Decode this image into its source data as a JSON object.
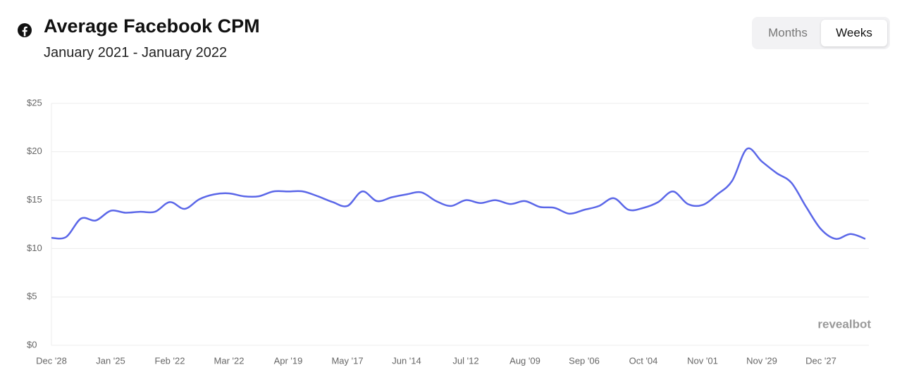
{
  "chart_data": {
    "type": "line",
    "title": "Average Facebook CPM",
    "subtitle": "January 2021 - January 2022",
    "categories": [
      "Dec '28",
      null,
      null,
      null,
      "Jan '25",
      null,
      null,
      null,
      "Feb '22",
      null,
      null,
      null,
      "Mar '22",
      null,
      null,
      null,
      "Apr '19",
      null,
      null,
      null,
      "May '17",
      null,
      null,
      null,
      "Jun '14",
      null,
      null,
      null,
      "Jul '12",
      null,
      null,
      null,
      "Aug '09",
      null,
      null,
      null,
      "Sep '06",
      null,
      null,
      null,
      "Oct '04",
      null,
      null,
      null,
      "Nov '01",
      null,
      null,
      null,
      "Nov '29",
      null,
      null,
      null,
      "Dec '27",
      null,
      null,
      null
    ],
    "series": [
      {
        "name": "CPM",
        "color": "#5b67e8",
        "values": [
          11.1,
          11.2,
          13.1,
          12.9,
          13.9,
          13.7,
          13.8,
          13.8,
          14.8,
          14.1,
          15.1,
          15.6,
          15.7,
          15.4,
          15.4,
          15.9,
          15.9,
          15.9,
          15.4,
          14.8,
          14.4,
          15.9,
          14.9,
          15.3,
          15.6,
          15.8,
          14.9,
          14.4,
          15.0,
          14.7,
          15.0,
          14.6,
          14.9,
          14.3,
          14.2,
          13.6,
          14.0,
          14.4,
          15.2,
          14.0,
          14.2,
          14.8,
          15.9,
          14.6,
          14.5,
          15.6,
          17.0,
          20.3,
          19.0,
          17.8,
          16.8,
          14.3,
          12.0,
          11.0,
          11.5,
          11.0
        ]
      }
    ],
    "ylim": [
      0,
      25
    ],
    "yticks": [
      {
        "value": 0,
        "label": "$0"
      },
      {
        "value": 5,
        "label": "$5"
      },
      {
        "value": 10,
        "label": "$10"
      },
      {
        "value": 15,
        "label": "$15"
      },
      {
        "value": 20,
        "label": "$20"
      },
      {
        "value": 25,
        "label": "$25"
      }
    ],
    "grid": true
  },
  "toggle": {
    "options": [
      "Months",
      "Weeks"
    ],
    "selected_index": 1
  },
  "watermark": "revealbot"
}
